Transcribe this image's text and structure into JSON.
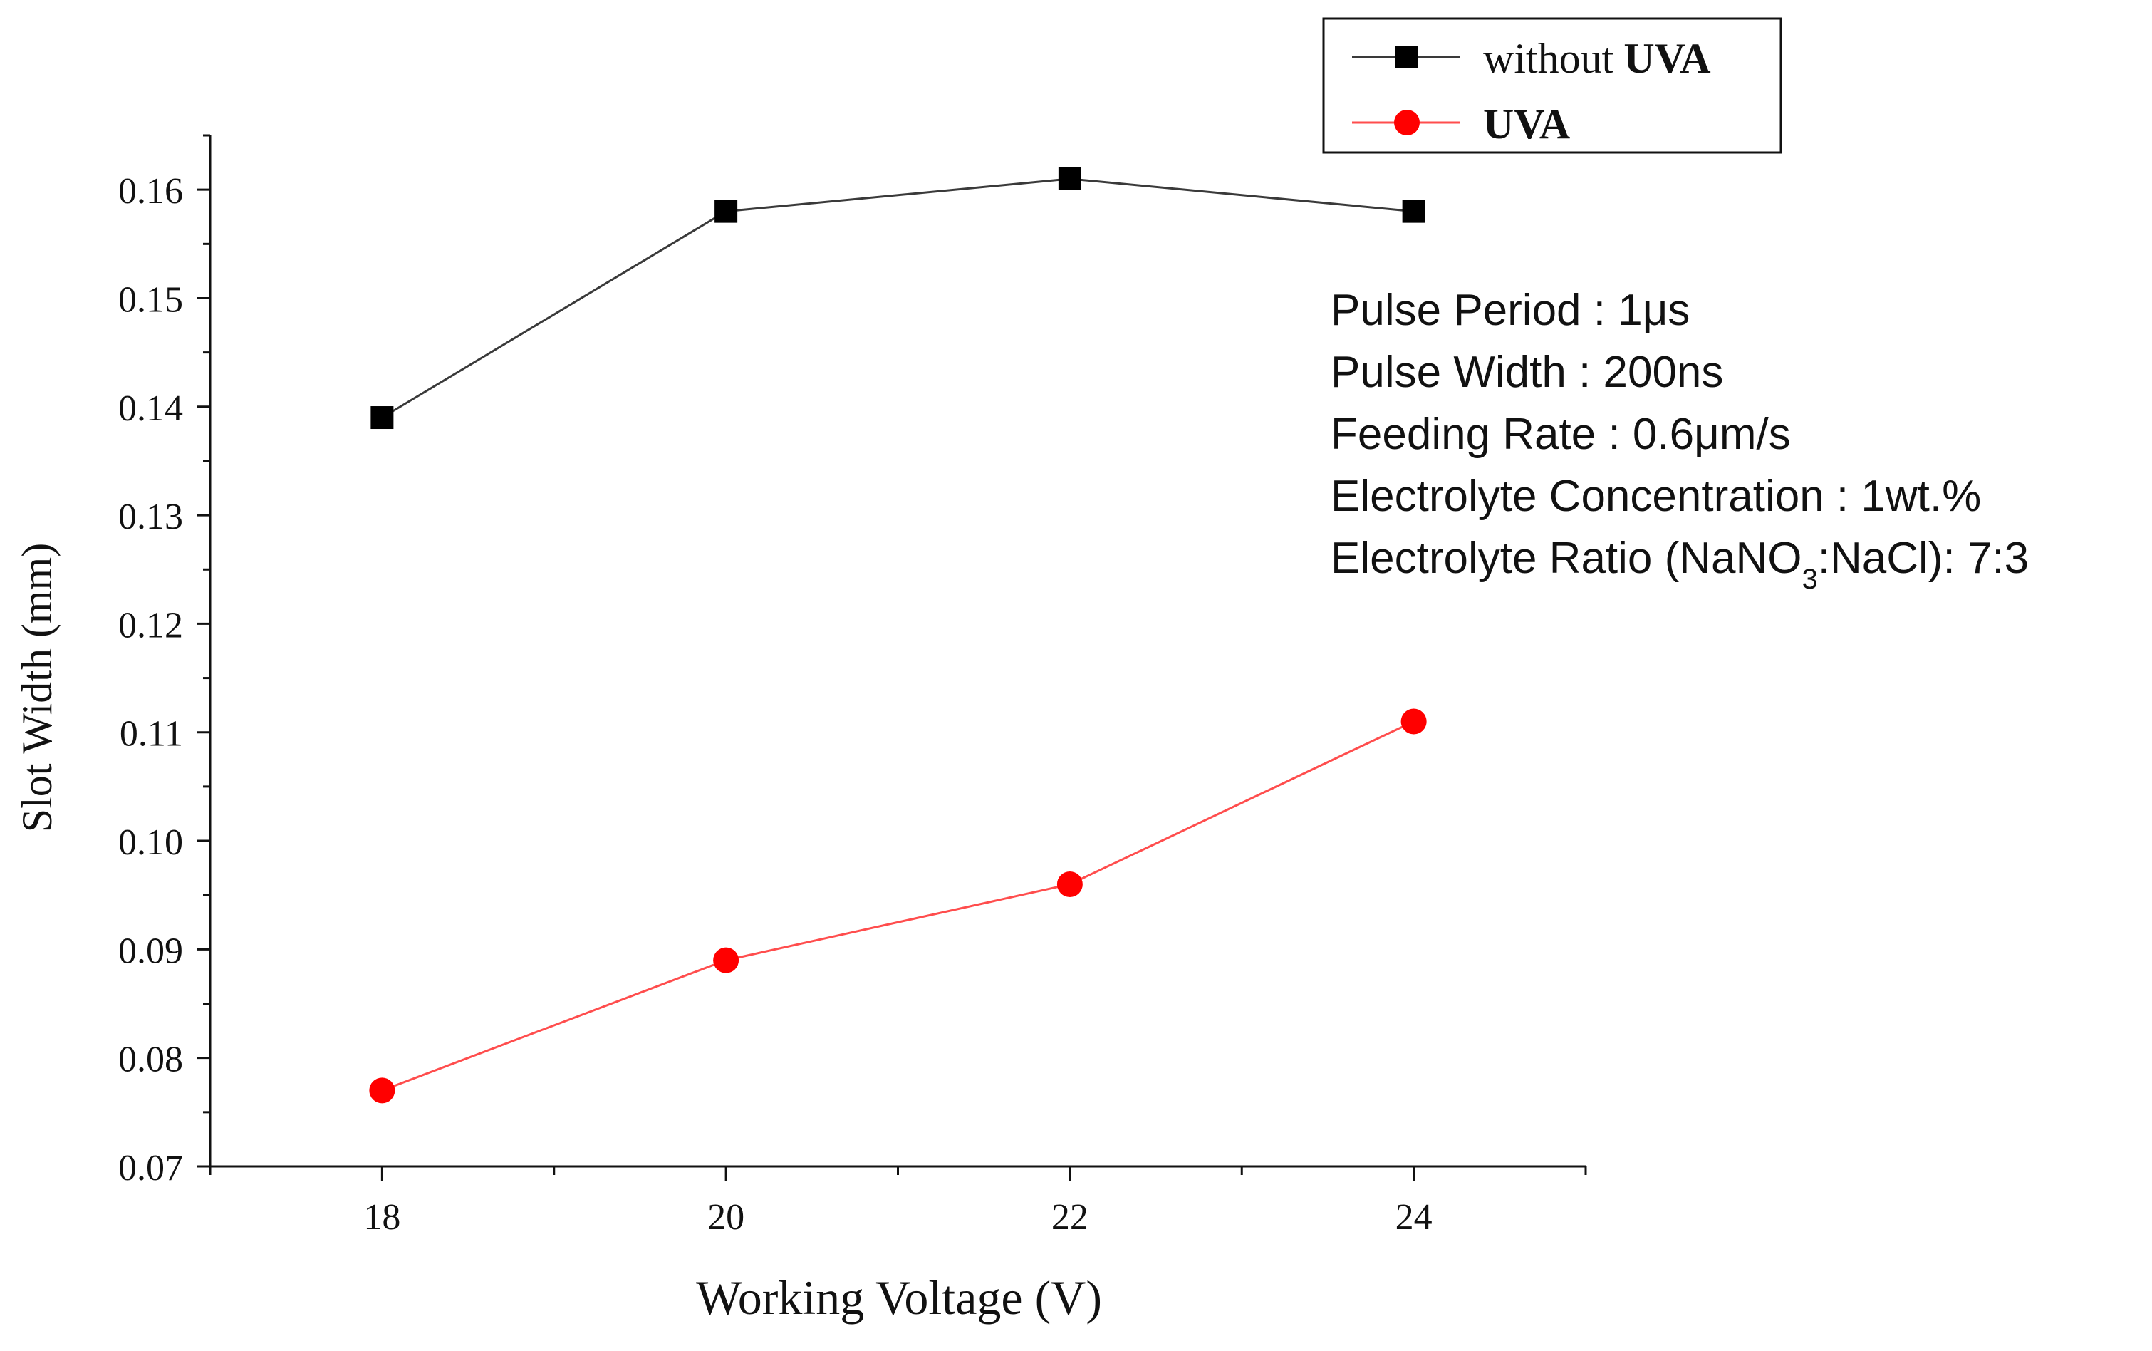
{
  "chart_data": {
    "type": "line",
    "title": "",
    "xlabel": "Working Voltage (V)",
    "ylabel": "Slot Width (mm)",
    "x": [
      18,
      20,
      22,
      24
    ],
    "xlim": [
      17,
      25
    ],
    "ylim": [
      0.07,
      0.165
    ],
    "x_ticks": [
      18,
      20,
      22,
      24
    ],
    "x_tick_labels": [
      "18",
      "20",
      "22",
      "24"
    ],
    "y_ticks": [
      0.07,
      0.08,
      0.09,
      0.1,
      0.11,
      0.12,
      0.13,
      0.14,
      0.15,
      0.16
    ],
    "y_tick_labels": [
      "0.07",
      "0.08",
      "0.09",
      "0.10",
      "0.11",
      "0.12",
      "0.13",
      "0.14",
      "0.15",
      "0.16"
    ],
    "grid": false,
    "legend_position": "top-right",
    "series": [
      {
        "name": "without UVA",
        "name_plain": "without",
        "name_bold": "UVA",
        "marker": "square",
        "color": "#000000",
        "line_color": "#3a3a3a",
        "values": [
          0.139,
          0.158,
          0.161,
          0.158
        ]
      },
      {
        "name": "UVA",
        "name_plain": "",
        "name_bold": "UVA",
        "marker": "circle",
        "color": "#ff0000",
        "line_color": "#ff4d4d",
        "values": [
          0.077,
          0.089,
          0.096,
          0.111
        ]
      }
    ],
    "annotations": {
      "pulse_period": "Pulse Period : 1μs",
      "pulse_width": "Pulse Width : 200ns",
      "feeding_rate": "Feeding Rate : 0.6μm/s",
      "electrolyte_concentration": "Electrolyte Concentration : 1wt.%",
      "electrolyte_ratio_prefix": "Electrolyte Ratio (NaNO",
      "electrolyte_ratio_subscript": "3",
      "electrolyte_ratio_suffix": ":NaCl): 7:3"
    }
  }
}
